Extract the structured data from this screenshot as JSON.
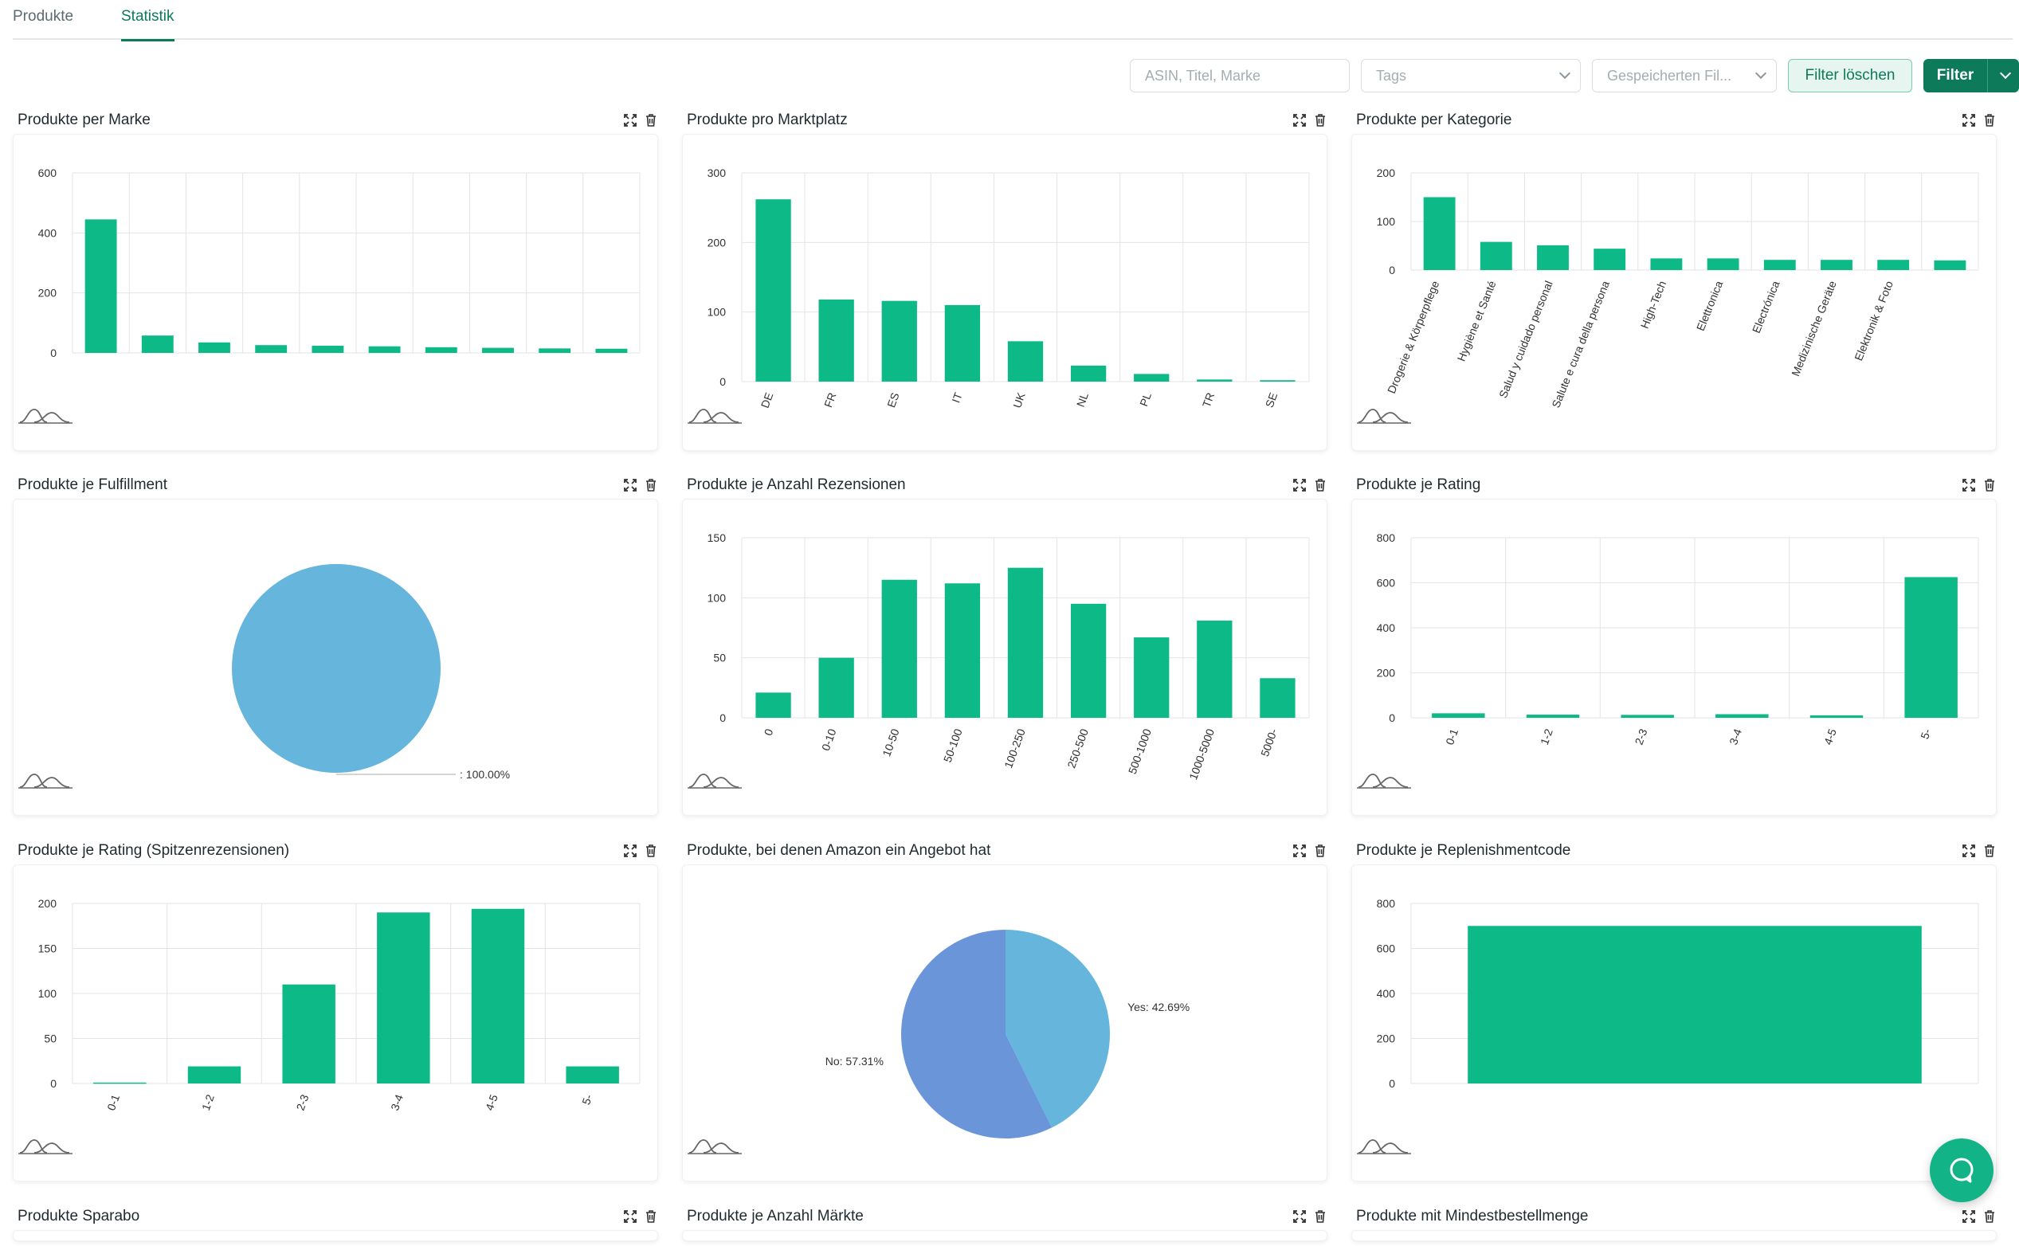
{
  "tabs": [
    {
      "label": "Produkte",
      "active": false
    },
    {
      "label": "Statistik",
      "active": true
    }
  ],
  "filters": {
    "search_placeholder": "ASIN, Titel, Marke",
    "tags_placeholder": "Tags",
    "saved_placeholder": "Gespeicherten Fil...",
    "clear_label": "Filter löschen",
    "filter_label": "Filter"
  },
  "colors": {
    "bar": "#0db987",
    "pie_a": "#66b5dc",
    "pie_b": "#6a95d9",
    "accent": "#0d7a5a",
    "grid": "#e2e5e6",
    "axis": "#333333"
  },
  "widgets": [
    {
      "title": "Produkte per Marke"
    },
    {
      "title": "Produkte pro Marktplatz"
    },
    {
      "title": "Produkte per Kategorie"
    },
    {
      "title": "Produkte je Fulfillment"
    },
    {
      "title": "Produkte je Anzahl Rezensionen"
    },
    {
      "title": "Produkte je Rating"
    },
    {
      "title": "Produkte je Rating (Spitzenrezensionen)"
    },
    {
      "title": "Produkte, bei denen Amazon ein Angebot hat"
    },
    {
      "title": "Produkte je Replenishmentcode"
    },
    {
      "title": "Produkte Sparabo"
    },
    {
      "title": "Produkte je Anzahl Märkte"
    },
    {
      "title": "Produkte mit Mindestbestellmenge"
    }
  ],
  "chart_data": [
    {
      "type": "bar",
      "title": "Produkte per Marke",
      "ylim": [
        0,
        600
      ],
      "yticks": [
        0,
        200,
        400,
        600
      ],
      "categories": [
        "",
        "",
        "",
        "",
        "",
        "",
        "",
        "",
        "",
        ""
      ],
      "values": [
        445,
        58,
        35,
        26,
        24,
        22,
        19,
        17,
        15,
        14
      ]
    },
    {
      "type": "bar",
      "title": "Produkte pro Marktplatz",
      "ylim": [
        0,
        300
      ],
      "yticks": [
        0,
        100,
        200,
        300
      ],
      "categories": [
        "DE",
        "FR",
        "ES",
        "IT",
        "UK",
        "NL",
        "PL",
        "TR",
        "SE"
      ],
      "values": [
        262,
        118,
        116,
        110,
        58,
        23,
        11,
        3,
        2
      ]
    },
    {
      "type": "bar",
      "title": "Produkte per Kategorie",
      "ylim": [
        0,
        200
      ],
      "yticks": [
        0,
        100,
        200
      ],
      "categories": [
        "Drogerie & Körperpflege",
        "Hygiène et Santé",
        "Salud y cuidado personal",
        "Salute e cura della persona",
        "High-Tech",
        "Elettronica",
        "Electrónica",
        "Medizinische Geräte",
        "Elektronik & Foto",
        ""
      ],
      "values": [
        150,
        58,
        51,
        44,
        24,
        24,
        21,
        21,
        21,
        20
      ]
    },
    {
      "type": "pie",
      "title": "Produkte je Fulfillment",
      "slices": [
        {
          "label": ": 100.00%",
          "value": 100
        }
      ]
    },
    {
      "type": "bar",
      "title": "Produkte je Anzahl Rezensionen",
      "ylim": [
        0,
        150
      ],
      "yticks": [
        0,
        50,
        100,
        150
      ],
      "categories": [
        "0",
        "0-10",
        "10-50",
        "50-100",
        "100-250",
        "250-500",
        "500-1000",
        "1000-5000",
        "5000-"
      ],
      "values": [
        21,
        50,
        115,
        112,
        125,
        95,
        67,
        81,
        33
      ]
    },
    {
      "type": "bar",
      "title": "Produkte je Rating",
      "ylim": [
        0,
        800
      ],
      "yticks": [
        0,
        200,
        400,
        600,
        800
      ],
      "categories": [
        "0-1",
        "1-2",
        "2-3",
        "3-4",
        "4-5",
        "5-"
      ],
      "values": [
        20,
        14,
        13,
        16,
        11,
        625
      ]
    },
    {
      "type": "bar",
      "title": "Produkte je Rating (Spitzenrezensionen)",
      "ylim": [
        0,
        200
      ],
      "yticks": [
        0,
        50,
        100,
        150,
        200
      ],
      "categories": [
        "0-1",
        "1-2",
        "2-3",
        "3-4",
        "4-5",
        "5-"
      ],
      "values": [
        1,
        19,
        110,
        190,
        194,
        19
      ]
    },
    {
      "type": "pie",
      "title": "Produkte, bei denen Amazon ein Angebot hat",
      "slices": [
        {
          "label": "Yes: 42.69%",
          "value": 42.69
        },
        {
          "label": "No: 57.31%",
          "value": 57.31
        }
      ]
    },
    {
      "type": "bar",
      "title": "Produkte je Replenishmentcode",
      "ylim": [
        0,
        800
      ],
      "yticks": [
        0,
        200,
        400,
        600,
        800
      ],
      "categories": [
        ""
      ],
      "values": [
        700
      ]
    }
  ]
}
